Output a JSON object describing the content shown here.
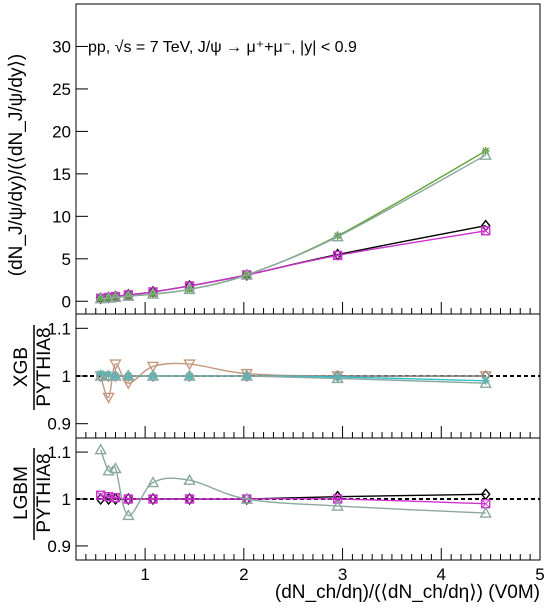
{
  "chart_data": [
    {
      "panel": "top",
      "type": "line",
      "annotation": "pp, √s = 7 TeV, J/ψ → μ⁺+μ⁻, |y| < 0.9",
      "ylabel": "(dN_J/ψ/dy)/(⟨dN_J/ψ/dy⟩)",
      "xlim": [
        0.3,
        5
      ],
      "ylim": [
        -1.5,
        35
      ],
      "yticks": [
        "0",
        "5",
        "10",
        "15",
        "20",
        "25",
        "30"
      ],
      "grid": false,
      "x": [
        0.55,
        0.63,
        0.7,
        0.83,
        1.08,
        1.45,
        2.03,
        2.95,
        4.45
      ],
      "series": [
        {
          "color": "#000000",
          "marker": "diamond",
          "values": [
            0.35,
            0.45,
            0.55,
            0.75,
            1.1,
            1.8,
            3.1,
            5.5,
            8.9
          ]
        },
        {
          "color": "#cc33cc",
          "marker": "square",
          "values": [
            0.35,
            0.45,
            0.55,
            0.75,
            1.1,
            1.8,
            3.1,
            5.4,
            8.3
          ]
        },
        {
          "color": "#5aa02c",
          "marker": "cross",
          "values": [
            0.3,
            0.38,
            0.45,
            0.6,
            0.85,
            1.4,
            3.1,
            7.7,
            17.7
          ]
        },
        {
          "color": "#8aa8a0",
          "marker": "triangle",
          "values": [
            0.3,
            0.38,
            0.45,
            0.6,
            0.85,
            1.4,
            3.1,
            7.6,
            17.2
          ]
        }
      ]
    },
    {
      "panel": "middle",
      "type": "line",
      "ylabel_numerator": "XGB",
      "ylabel_denominator": "PYTHIA8",
      "xlim": [
        0.3,
        5
      ],
      "ylim": [
        0.87,
        1.13
      ],
      "yticks": [
        "0.9",
        "1",
        "1.1"
      ],
      "reference_line": 1,
      "x": [
        0.55,
        0.63,
        0.7,
        0.83,
        1.08,
        1.45,
        2.03,
        2.95,
        4.45
      ],
      "series": [
        {
          "color": "#c4987e",
          "marker": "triangle-down",
          "values": [
            1.0,
            0.955,
            1.025,
            0.985,
            1.02,
            1.025,
            1.005,
            1.0,
            1.0
          ]
        },
        {
          "color": "#888888",
          "marker": "diamond",
          "values": [
            1.0,
            1.0,
            1.0,
            1.0,
            1.0,
            1.0,
            1.0,
            1.0,
            1.0
          ]
        },
        {
          "color": "#2fbfc8",
          "marker": "cross",
          "values": [
            1.005,
            1.003,
            1.0,
            1.0,
            1.0,
            1.0,
            1.0,
            0.998,
            0.99
          ]
        },
        {
          "color": "#8aa8a0",
          "marker": "triangle",
          "values": [
            1.0,
            1.0,
            1.0,
            1.0,
            1.0,
            1.0,
            1.0,
            0.995,
            0.985
          ]
        }
      ]
    },
    {
      "panel": "bottom",
      "type": "line",
      "ylabel_numerator": "LGBM",
      "ylabel_denominator": "PYTHIA8",
      "xlabel": "(dN_ch/dη)/(⟨dN_ch/dη⟩) (V0M)",
      "xlim": [
        0.3,
        5
      ],
      "ylim": [
        0.87,
        1.13
      ],
      "xticks": [
        "1",
        "2",
        "3",
        "4",
        "5"
      ],
      "yticks": [
        "0.9",
        "1",
        "1.1"
      ],
      "reference_line": 1,
      "x": [
        0.55,
        0.63,
        0.7,
        0.83,
        1.08,
        1.45,
        2.03,
        2.95,
        4.45
      ],
      "series": [
        {
          "color": "#000000",
          "marker": "diamond",
          "values": [
            1.0,
            1.0,
            1.0,
            1.0,
            1.0,
            1.0,
            1.0,
            1.005,
            1.01
          ]
        },
        {
          "color": "#cc33cc",
          "marker": "square",
          "values": [
            1.008,
            1.005,
            1.003,
            1.0,
            1.0,
            1.0,
            1.0,
            1.0,
            0.99
          ]
        },
        {
          "color": "#8aa8a0",
          "marker": "triangle",
          "values": [
            1.105,
            1.06,
            1.065,
            0.965,
            1.035,
            1.04,
            1.0,
            0.985,
            0.97
          ]
        }
      ]
    }
  ]
}
